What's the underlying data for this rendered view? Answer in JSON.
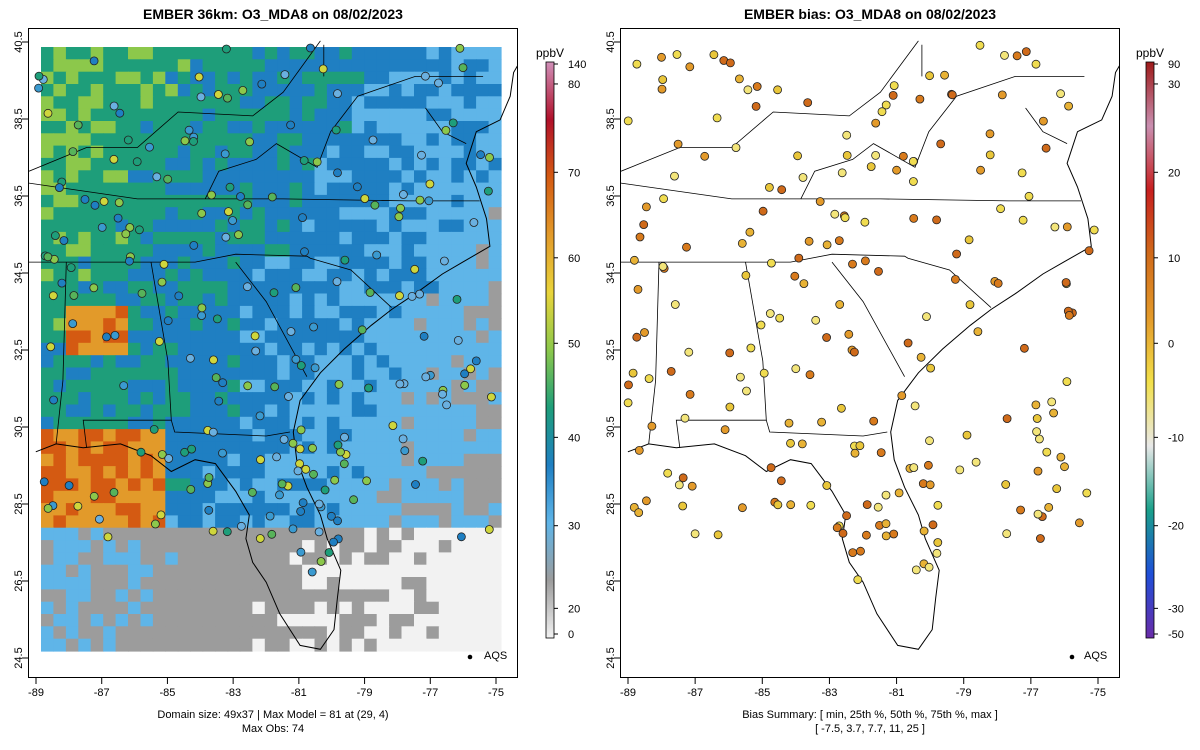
{
  "panels": {
    "left": {
      "title": "EMBER 36km: O3_MDA8 on 08/02/2023",
      "footer_line1": "Domain size: 49x37 | Max Model = 81 at (29, 4)",
      "footer_line2": "Max Obs: 74",
      "colorbar_unit": "ppbV",
      "colorbar_ticks": [
        "140",
        "80",
        "70",
        "60",
        "50",
        "40",
        "30",
        "20",
        "0"
      ],
      "legend_label": "AQS"
    },
    "right": {
      "title": "EMBER bias: O3_MDA8 on 08/02/2023",
      "footer_line1": "Bias Summary: [ min, 25th %, 50th %, 75th %, max ]",
      "footer_line2": "[ -7.5,   3.7,   7.7,   11,   25 ]",
      "colorbar_unit": "ppbV",
      "colorbar_ticks": [
        "90",
        "30",
        "20",
        "10",
        "0",
        "-10",
        "-20",
        "-30",
        "-50"
      ],
      "legend_label": "AQS"
    }
  },
  "axes": {
    "x_ticks": [
      "-89",
      "-87",
      "-85",
      "-83",
      "-81",
      "-79",
      "-77",
      "-75"
    ],
    "y_ticks": [
      "40.5",
      "38.5",
      "36.5",
      "34.5",
      "32.5",
      "30.5",
      "28.5",
      "26.5",
      "24.5"
    ],
    "lon_range": [
      -89.2,
      -74.8
    ],
    "lat_range": [
      24.5,
      40.9
    ]
  },
  "colors": {
    "model_scale": [
      "#f2f2f2",
      "#9c9c9c",
      "#5fb5e8",
      "#1f7fc2",
      "#1e9e7a",
      "#8cc84b",
      "#e9d43b",
      "#e29a2a",
      "#d45a12",
      "#b0102a",
      "#d08fb8"
    ],
    "bias_scale": [
      "#6a2ca8",
      "#1f4fd8",
      "#1aa08a",
      "#e8e8e8",
      "#f2e04a",
      "#e39a2a",
      "#d06a1a",
      "#c71f1f",
      "#c98fb0",
      "#9e1a1a"
    ]
  }
}
